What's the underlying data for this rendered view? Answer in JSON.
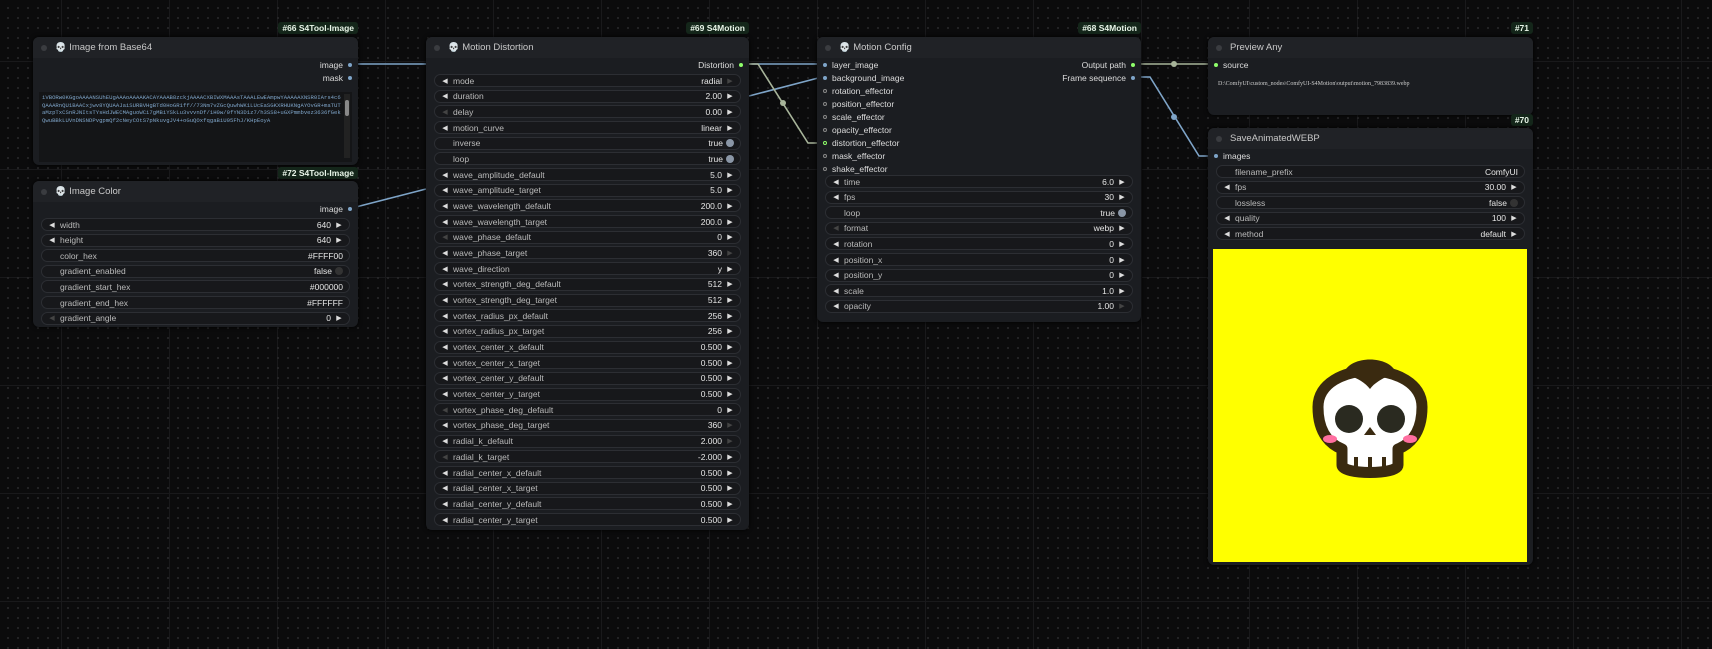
{
  "colors": {
    "image": "#7ea4c8",
    "distortion": "#8fff6b",
    "path": "#8fff6b",
    "canvas_image": "#ffff00"
  },
  "nodes": {
    "n66": {
      "badge": "#66 S4Tool-Image",
      "title": "Image from Base64",
      "icon": "skull-icon",
      "outputs": [
        "image",
        "mask"
      ],
      "base64_text": "iVBORw0KGgoAAAANSUhEUgAAAoAAAAKACAYAAAB8zckjAAAACXBIWXMAAAsTAAALEwEAmpwYAAAAAXNSR0IArs4c6QAAARnQU1BAACxjwv8YQUAAJaiSURBVHgBTd0HoGR1ff//73Nm7vZGcQuwhWK1LUcEaSGKXRHUKNgAYOvGR+maTUTaMzpTxCSnRJNItsTYsHdJWECMAguoWCi7gMBiYSkLu3vvvnDf/1H0w/0fYN3D1z7/h3SS8+uGXPmmbvez3636fGekQwuBBkLUVnDNSNDPvgpmQf2cNeyCOtS7pNkuvgJV4+oGuQOxfqgaBiU05FhJ/KHpEoyA",
      "scroll": [
        "up",
        "down"
      ]
    },
    "n72": {
      "badge": "#72 S4Tool-Image",
      "title": "Image Color",
      "icon": "skull-icon",
      "outputs": [
        "image"
      ],
      "widgets": [
        {
          "type": "number",
          "label": "width",
          "value": "640"
        },
        {
          "type": "number",
          "label": "height",
          "value": "640"
        },
        {
          "type": "text",
          "label": "color_hex",
          "value": "#FFFF00"
        },
        {
          "type": "toggle",
          "label": "gradient_enabled",
          "value": "false"
        },
        {
          "type": "text",
          "label": "gradient_start_hex",
          "value": "#000000"
        },
        {
          "type": "text",
          "label": "gradient_end_hex",
          "value": "#FFFFFF"
        },
        {
          "type": "number",
          "label": "gradient_angle",
          "value": "0",
          "leftDim": true
        }
      ]
    },
    "n69": {
      "badge": "#69 S4Motion",
      "title": "Motion Distortion",
      "icon": "skull-icon",
      "outputs": [
        "Distortion"
      ],
      "widgets": [
        {
          "type": "combo",
          "label": "mode",
          "value": "radial",
          "rightDim": true
        },
        {
          "type": "number",
          "label": "duration",
          "value": "2.00"
        },
        {
          "type": "number",
          "label": "delay",
          "value": "0.00",
          "leftDim": true
        },
        {
          "type": "combo",
          "label": "motion_curve",
          "value": "linear"
        },
        {
          "type": "toggle",
          "label": "inverse",
          "value": "true"
        },
        {
          "type": "toggle",
          "label": "loop",
          "value": "true"
        },
        {
          "type": "number",
          "label": "wave_amplitude_default",
          "value": "5.0"
        },
        {
          "type": "number",
          "label": "wave_amplitude_target",
          "value": "5.0"
        },
        {
          "type": "number",
          "label": "wave_wavelength_default",
          "value": "200.0"
        },
        {
          "type": "number",
          "label": "wave_wavelength_target",
          "value": "200.0"
        },
        {
          "type": "number",
          "label": "wave_phase_default",
          "value": "0",
          "leftDim": true
        },
        {
          "type": "number",
          "label": "wave_phase_target",
          "value": "360",
          "rightDim": true
        },
        {
          "type": "combo",
          "label": "wave_direction",
          "value": "y"
        },
        {
          "type": "number",
          "label": "vortex_strength_deg_default",
          "value": "512"
        },
        {
          "type": "number",
          "label": "vortex_strength_deg_target",
          "value": "512"
        },
        {
          "type": "number",
          "label": "vortex_radius_px_default",
          "value": "256"
        },
        {
          "type": "number",
          "label": "vortex_radius_px_target",
          "value": "256"
        },
        {
          "type": "number",
          "label": "vortex_center_x_default",
          "value": "0.500"
        },
        {
          "type": "number",
          "label": "vortex_center_x_target",
          "value": "0.500"
        },
        {
          "type": "number",
          "label": "vortex_center_y_default",
          "value": "0.500"
        },
        {
          "type": "number",
          "label": "vortex_center_y_target",
          "value": "0.500"
        },
        {
          "type": "number",
          "label": "vortex_phase_deg_default",
          "value": "0",
          "leftDim": true
        },
        {
          "type": "number",
          "label": "vortex_phase_deg_target",
          "value": "360",
          "rightDim": true
        },
        {
          "type": "number",
          "label": "radial_k_default",
          "value": "2.000",
          "rightDim": true
        },
        {
          "type": "number",
          "label": "radial_k_target",
          "value": "-2.000",
          "leftDim": true
        },
        {
          "type": "number",
          "label": "radial_center_x_default",
          "value": "0.500"
        },
        {
          "type": "number",
          "label": "radial_center_x_target",
          "value": "0.500"
        },
        {
          "type": "number",
          "label": "radial_center_y_default",
          "value": "0.500"
        },
        {
          "type": "number",
          "label": "radial_center_y_target",
          "value": "0.500"
        }
      ]
    },
    "n68": {
      "badge": "#68 S4Motion",
      "title": "Motion Config",
      "icon": "skull-icon",
      "inputs": [
        "layer_image",
        "background_image",
        "rotation_effector",
        "position_effector",
        "scale_effector",
        "opacity_effector",
        "distortion_effector",
        "mask_effector",
        "shake_effector"
      ],
      "outputs": [
        "Output path",
        "Frame sequence"
      ],
      "widgets": [
        {
          "type": "number",
          "label": "time",
          "value": "6.0"
        },
        {
          "type": "number",
          "label": "fps",
          "value": "30"
        },
        {
          "type": "toggle",
          "label": "loop",
          "value": "true"
        },
        {
          "type": "combo",
          "label": "format",
          "value": "webp",
          "leftDim": true
        },
        {
          "type": "number",
          "label": "rotation",
          "value": "0"
        },
        {
          "type": "number",
          "label": "position_x",
          "value": "0"
        },
        {
          "type": "number",
          "label": "position_y",
          "value": "0"
        },
        {
          "type": "number",
          "label": "scale",
          "value": "1.0"
        },
        {
          "type": "number",
          "label": "opacity",
          "value": "1.00",
          "rightDim": true
        }
      ]
    },
    "n71": {
      "badge": "#71",
      "title": "Preview Any",
      "inputs": [
        "source"
      ],
      "text": "D:\\ComfyUI\\custom_nodes\\ComfyUI-S4Motion\\output\\motion_7983839.webp"
    },
    "n70": {
      "badge": "#70",
      "title": "SaveAnimatedWEBP",
      "inputs": [
        "images"
      ],
      "widgets": [
        {
          "type": "text",
          "label": "filename_prefix",
          "value": "ComfyUI"
        },
        {
          "type": "number",
          "label": "fps",
          "value": "30.00"
        },
        {
          "type": "toggle",
          "label": "lossless",
          "value": "false"
        },
        {
          "type": "number",
          "label": "quality",
          "value": "100"
        },
        {
          "type": "combo",
          "label": "method",
          "value": "default"
        }
      ],
      "preview": "skull-on-yellow-image"
    }
  }
}
